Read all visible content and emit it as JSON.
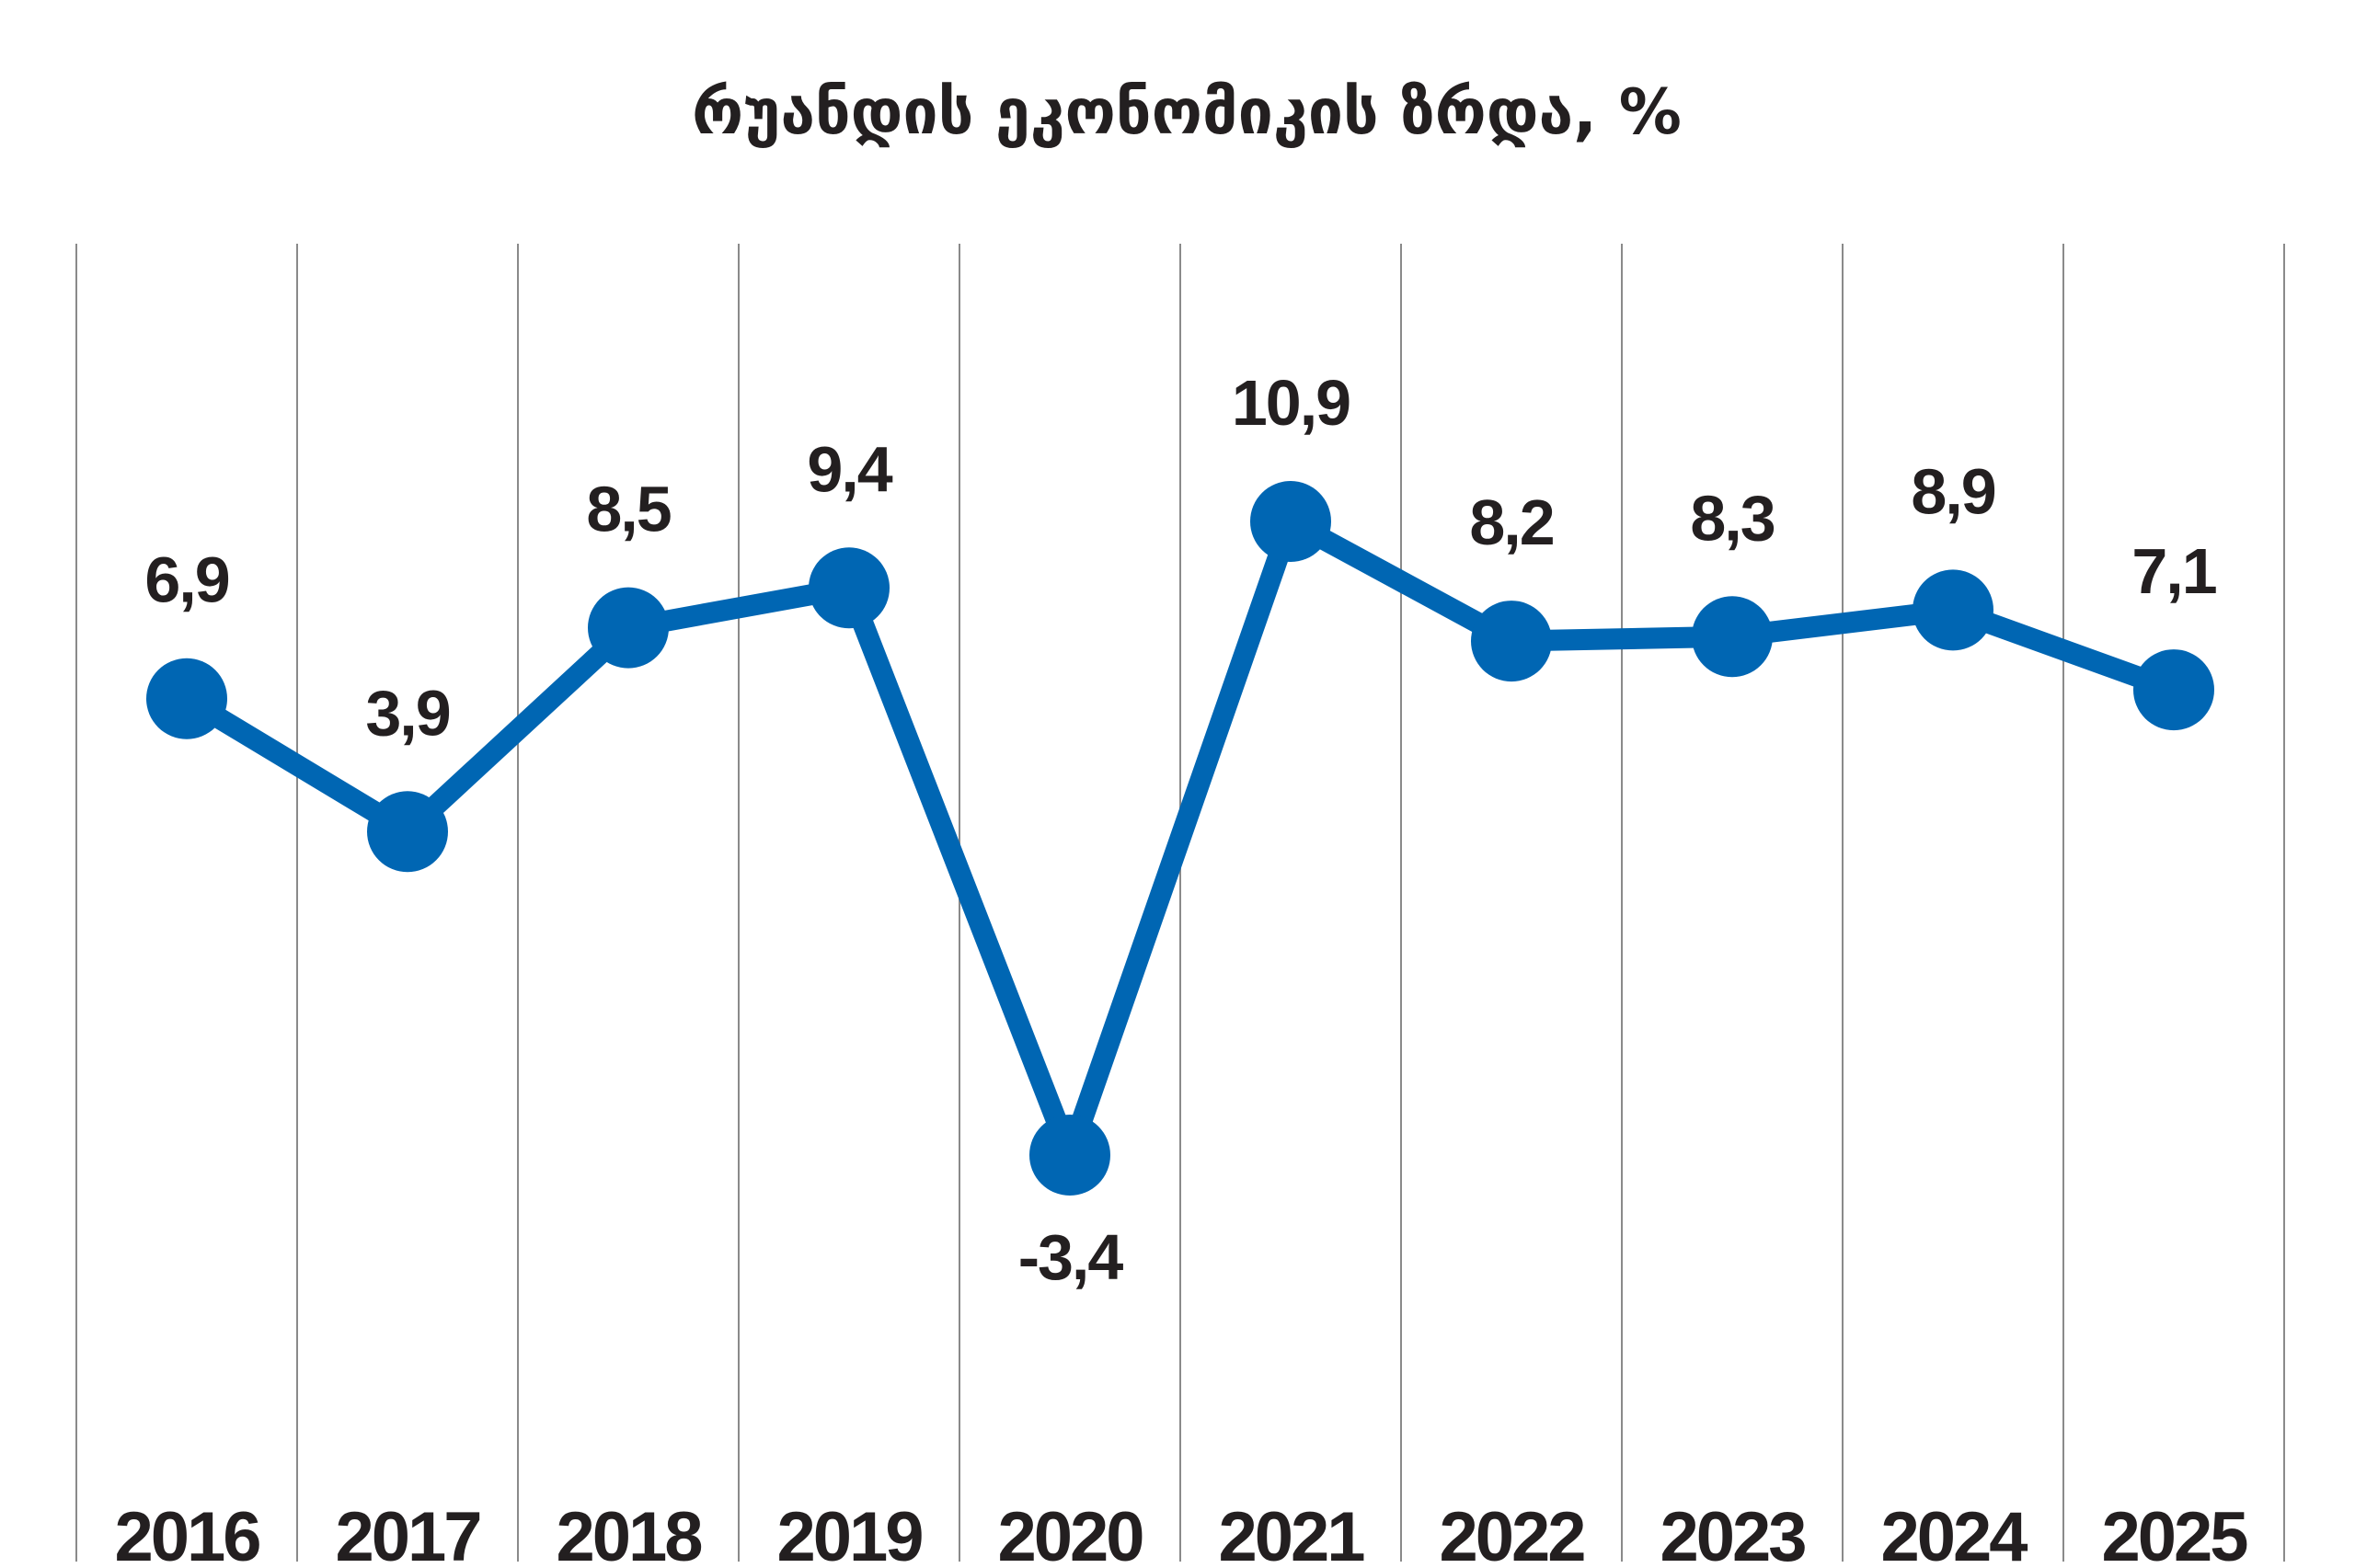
{
  "chart_data": {
    "type": "line",
    "title": "რუანდის ეკონომიკის ზრდა, %",
    "xlabel": "",
    "ylabel": "",
    "categories": [
      "2016",
      "2017",
      "2018",
      "2019",
      "2020",
      "2021",
      "2022",
      "2023",
      "2024",
      "2025"
    ],
    "values": [
      6.9,
      3.9,
      8.5,
      9.4,
      -3.4,
      10.9,
      8.2,
      8.3,
      8.9,
      7.1
    ],
    "data_labels": [
      "6,9",
      "3,9",
      "8,5",
      "9,4",
      "-3,4",
      "10,9",
      "8,2",
      "8,3",
      "8,9",
      "7,1"
    ],
    "ylim": [
      -3.4,
      10.9
    ],
    "grid": "vertical",
    "legend": "none",
    "color": "#0066b3"
  }
}
